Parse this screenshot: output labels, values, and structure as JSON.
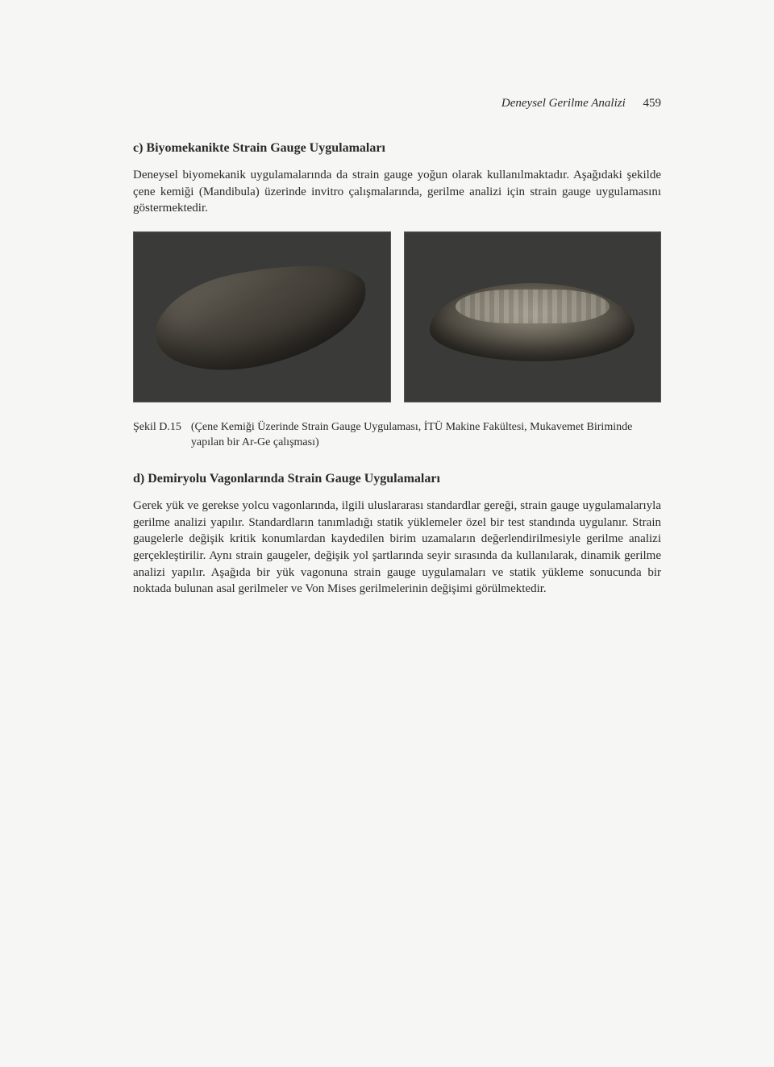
{
  "runningHead": {
    "title": "Deneysel Gerilme Analizi",
    "pageNumber": "459"
  },
  "sectionC": {
    "heading": "c) Biyomekanikte Strain Gauge Uygulamaları",
    "paragraph": "Deneysel biyomekanik uygulamalarında da strain gauge yoğun olarak kullanılmaktadır. Aşağıdaki şekilde çene kemiği (Mandibula) üzerinde invitro çalışmalarında, gerilme analizi için strain gauge uygulamasını göstermektedir."
  },
  "figure": {
    "label": "Şekil D.15",
    "caption": "(Çene Kemiği Üzerinde Strain Gauge Uygulaması, İTÜ Makine Fakültesi, Mukavemet Biriminde yapılan bir Ar-Ge çalışması)"
  },
  "sectionD": {
    "heading": "d) Demiryolu Vagonlarında Strain Gauge Uygulamaları",
    "paragraph": "Gerek yük ve gerekse yolcu vagonlarında, ilgili uluslararası standardlar gereği, strain gauge uygulamalarıyla gerilme analizi yapılır. Standardların tanımladığı statik yüklemeler özel bir test standında uygulanır. Strain gaugelerle değişik kritik konumlardan kaydedilen birim uzamaların değerlendirilmesiyle gerilme analizi gerçekleştirilir. Aynı strain gaugeler, değişik yol şartlarında seyir sırasında da kullanılarak, dinamik gerilme analizi yapılır. Aşağıda bir yük vagonuna strain gauge uygulamaları ve statik yükleme sonucunda bir noktada bulunan asal gerilmeler ve Von Mises gerilmelerinin değişimi görülmektedir."
  }
}
